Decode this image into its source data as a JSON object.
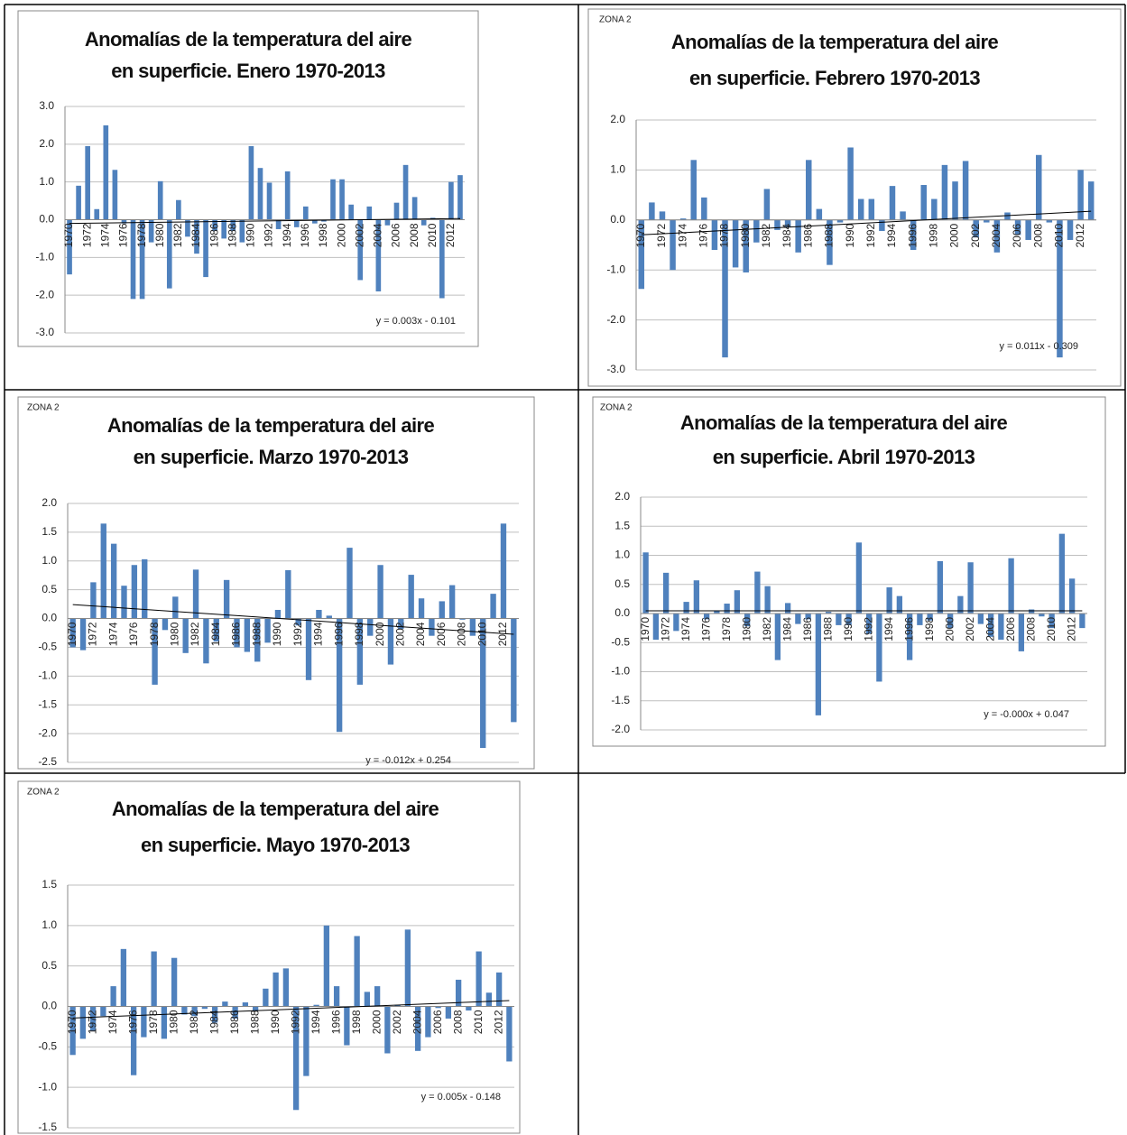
{
  "chart_data": [
    {
      "type": "bar",
      "title": [
        "Anomalías de la temperatura del aire",
        "en superficie. Enero 1970-2013"
      ],
      "categories": [
        "1970",
        null,
        "1972",
        null,
        "1974",
        null,
        "1976",
        null,
        "1978",
        null,
        "1980",
        null,
        "1982",
        null,
        "1984",
        null,
        "1986",
        null,
        "1988",
        null,
        "1990",
        null,
        "1992",
        null,
        "1994",
        null,
        "1996",
        null,
        "1998",
        null,
        "2000",
        null,
        "2002",
        null,
        "2004",
        null,
        "2006",
        null,
        "2008",
        null,
        "2010",
        null,
        "2012",
        null
      ],
      "values": [
        -1.45,
        0.9,
        1.95,
        0.28,
        2.5,
        1.32,
        -0.1,
        -2.1,
        -2.1,
        -0.6,
        1.02,
        -1.82,
        0.52,
        -0.45,
        -0.9,
        -1.52,
        -0.3,
        -0.5,
        -0.3,
        -0.6,
        1.95,
        1.37,
        0.98,
        -0.25,
        1.28,
        -0.2,
        0.35,
        -0.1,
        -0.05,
        1.07,
        1.07,
        0.4,
        -1.6,
        0.35,
        -1.9,
        -0.15,
        0.45,
        1.45,
        0.6,
        -0.15,
        0.05,
        -2.08,
        1.0,
        1.18
      ],
      "color": "#4f81bd",
      "ylim": [
        -3,
        3
      ],
      "yticks": [
        {
          "value": -3,
          "label": "-3.0"
        },
        {
          "value": -2,
          "label": "-2.0"
        },
        {
          "value": -1,
          "label": "-1.0"
        },
        {
          "value": 0,
          "label": "0.0"
        },
        {
          "value": 1,
          "label": "1.0"
        },
        {
          "value": 2,
          "label": "2.0"
        },
        {
          "value": 3,
          "label": "3.0"
        }
      ],
      "grid": true,
      "trendline": {
        "slope": 0.003,
        "intercept": -0.101,
        "label": "y = 0.003x - 0.101"
      }
    },
    {
      "type": "bar",
      "annotation": "ZONA 2",
      "title": [
        "Anomalías de la temperatura del aire",
        "en superficie. Febrero 1970-2013"
      ],
      "categories": [
        "1970",
        null,
        "1972",
        null,
        "1974",
        null,
        "1976",
        null,
        "1978",
        null,
        "1980",
        null,
        "1982",
        null,
        "1984",
        null,
        "1986",
        null,
        "1988",
        null,
        "1990",
        null,
        "1992",
        null,
        "1994",
        null,
        "1996",
        null,
        "1998",
        null,
        "2000",
        null,
        "2002",
        null,
        "2004",
        null,
        "2006",
        null,
        "2008",
        null,
        "2010",
        null,
        "2012",
        null
      ],
      "values": [
        -1.38,
        0.35,
        0.17,
        -1.0,
        0.03,
        1.2,
        0.45,
        -0.6,
        -2.75,
        -0.95,
        -1.05,
        -0.45,
        0.62,
        -0.2,
        -0.15,
        -0.65,
        1.2,
        0.22,
        -0.9,
        -0.05,
        1.45,
        0.42,
        0.42,
        -0.22,
        0.68,
        0.17,
        -0.6,
        0.7,
        0.42,
        1.1,
        0.77,
        1.18,
        -0.35,
        -0.05,
        -0.65,
        0.15,
        -0.3,
        -0.4,
        1.3,
        -0.05,
        -2.75,
        -0.4,
        1.0,
        0.77
      ],
      "color": "#4f81bd",
      "ylim": [
        -3,
        2
      ],
      "yticks": [
        {
          "value": -3,
          "label": "-3.0"
        },
        {
          "value": -2,
          "label": "-2.0"
        },
        {
          "value": -1,
          "label": "-1.0"
        },
        {
          "value": 0,
          "label": "0.0"
        },
        {
          "value": 1,
          "label": "1.0"
        },
        {
          "value": 2,
          "label": "2.0"
        }
      ],
      "grid": true,
      "trendline": {
        "slope": 0.011,
        "intercept": -0.309,
        "label": "y = 0.011x - 0.309"
      }
    },
    {
      "type": "bar",
      "annotation": "ZONA 2",
      "title": [
        "Anomalías de la temperatura del aire",
        "en superficie. Marzo 1970-2013"
      ],
      "categories": [
        "1970",
        null,
        "1972",
        null,
        "1974",
        null,
        "1976",
        null,
        "1978",
        null,
        "1980",
        null,
        "1982",
        null,
        "1984",
        null,
        "1986",
        null,
        "1988",
        null,
        "1990",
        null,
        "1992",
        null,
        "1994",
        null,
        "1996",
        null,
        "1998",
        null,
        "2000",
        null,
        "2002",
        null,
        "2004",
        null,
        "2006",
        null,
        "2008",
        null,
        "2010",
        null,
        "2012",
        null
      ],
      "values": [
        -0.5,
        -0.55,
        0.63,
        1.65,
        1.3,
        0.57,
        0.93,
        1.03,
        -1.15,
        -0.2,
        0.38,
        -0.6,
        0.85,
        -0.78,
        -0.4,
        0.67,
        -0.5,
        -0.58,
        -0.75,
        -0.42,
        0.15,
        0.84,
        -0.12,
        -1.07,
        0.15,
        0.05,
        -1.97,
        1.23,
        -1.15,
        -0.3,
        0.93,
        -0.8,
        -0.18,
        0.76,
        0.35,
        -0.3,
        0.3,
        0.58,
        -0.02,
        -0.3,
        -2.25,
        0.43,
        1.65,
        -1.8
      ],
      "color": "#4f81bd",
      "ylim": [
        -2.5,
        2
      ],
      "yticks": [
        {
          "value": -2.5,
          "label": "-2.5"
        },
        {
          "value": -2,
          "label": "-2.0"
        },
        {
          "value": -1.5,
          "label": "-1.5"
        },
        {
          "value": -1,
          "label": "-1.0"
        },
        {
          "value": -0.5,
          "label": "-0.5"
        },
        {
          "value": 0,
          "label": "0.0"
        },
        {
          "value": 0.5,
          "label": "0.5"
        },
        {
          "value": 1,
          "label": "1.0"
        },
        {
          "value": 1.5,
          "label": "1.5"
        },
        {
          "value": 2,
          "label": "2.0"
        }
      ],
      "grid": true,
      "trendline": {
        "slope": -0.012,
        "intercept": 0.254,
        "label": "y = -0.012x + 0.254"
      }
    },
    {
      "type": "bar",
      "annotation": "ZONA 2",
      "title": [
        "Anomalías de la temperatura del aire",
        "en superficie. Abril 1970-2013"
      ],
      "categories": [
        "1970",
        null,
        "1972",
        null,
        "1974",
        null,
        "1976",
        null,
        "1978",
        null,
        "1980",
        null,
        "1982",
        null,
        "1984",
        null,
        "1986",
        null,
        "1988",
        null,
        "1990",
        null,
        "1992",
        null,
        "1994",
        null,
        "1996",
        null,
        "1998",
        null,
        "2000",
        null,
        "2002",
        null,
        "2004",
        null,
        "2006",
        null,
        "2008",
        null,
        "2010",
        null,
        "2012",
        null
      ],
      "values": [
        1.05,
        -0.45,
        0.7,
        -0.3,
        0.2,
        0.57,
        -0.1,
        0.05,
        0.17,
        0.4,
        -0.22,
        0.72,
        0.47,
        -0.8,
        0.18,
        -0.18,
        -0.1,
        -1.75,
        0.03,
        -0.2,
        -0.2,
        1.22,
        -0.35,
        -1.17,
        0.45,
        0.3,
        -0.8,
        -0.2,
        -0.12,
        0.9,
        -0.25,
        0.3,
        0.88,
        -0.18,
        -0.4,
        -0.45,
        0.95,
        -0.65,
        0.07,
        -0.05,
        -0.25,
        1.37,
        0.6,
        -0.25
      ],
      "color": "#4f81bd",
      "ylim": [
        -2,
        2
      ],
      "yticks": [
        {
          "value": -2,
          "label": "-2.0"
        },
        {
          "value": -1.5,
          "label": "-1.5"
        },
        {
          "value": -1,
          "label": "-1.0"
        },
        {
          "value": -0.5,
          "label": "-0.5"
        },
        {
          "value": 0,
          "label": "0.0"
        },
        {
          "value": 0.5,
          "label": "0.5"
        },
        {
          "value": 1,
          "label": "1.0"
        },
        {
          "value": 1.5,
          "label": "1.5"
        },
        {
          "value": 2,
          "label": "2.0"
        }
      ],
      "grid": true,
      "trendline": {
        "slope": 0,
        "intercept": 0.047,
        "label": "y = -0.000x + 0.047"
      }
    },
    {
      "type": "bar",
      "annotation": "ZONA 2",
      "title": [
        "Anomalías de la temperatura del aire",
        "en superficie. Mayo 1970-2013"
      ],
      "categories": [
        "1970",
        null,
        "1972",
        null,
        "1974",
        null,
        "1976",
        null,
        "1978",
        null,
        "1980",
        null,
        "1982",
        null,
        "1984",
        null,
        "1986",
        null,
        "1988",
        null,
        "1990",
        null,
        "1992",
        null,
        "1994",
        null,
        "1996",
        null,
        "1998",
        null,
        "2000",
        null,
        "2002",
        null,
        "2004",
        null,
        "2006",
        null,
        "2008",
        null,
        "2010",
        null,
        "2012",
        null
      ],
      "values": [
        -0.6,
        -0.4,
        -0.3,
        -0.12,
        0.25,
        0.71,
        -0.85,
        -0.38,
        0.68,
        -0.4,
        0.6,
        -0.1,
        -0.12,
        -0.03,
        -0.2,
        0.06,
        -0.15,
        0.05,
        -0.05,
        0.22,
        0.42,
        0.47,
        -1.28,
        -0.86,
        0.02,
        1.0,
        0.25,
        -0.48,
        0.87,
        0.18,
        0.25,
        -0.58,
        0.02,
        0.95,
        -0.55,
        -0.38,
        -0.02,
        -0.15,
        0.33,
        -0.05,
        0.68,
        0.17,
        0.42,
        -0.68
      ],
      "color": "#4f81bd",
      "ylim": [
        -1.5,
        1.5
      ],
      "yticks": [
        {
          "value": -1.5,
          "label": "-1.5"
        },
        {
          "value": -1,
          "label": "-1.0"
        },
        {
          "value": -0.5,
          "label": "-0.5"
        },
        {
          "value": 0,
          "label": "0.0"
        },
        {
          "value": 0.5,
          "label": "0.5"
        },
        {
          "value": 1,
          "label": "1.0"
        },
        {
          "value": 1.5,
          "label": "1.5"
        }
      ],
      "grid": true,
      "trendline": {
        "slope": 0.005,
        "intercept": -0.148,
        "label": "y = 0.005x - 0.148"
      }
    }
  ]
}
